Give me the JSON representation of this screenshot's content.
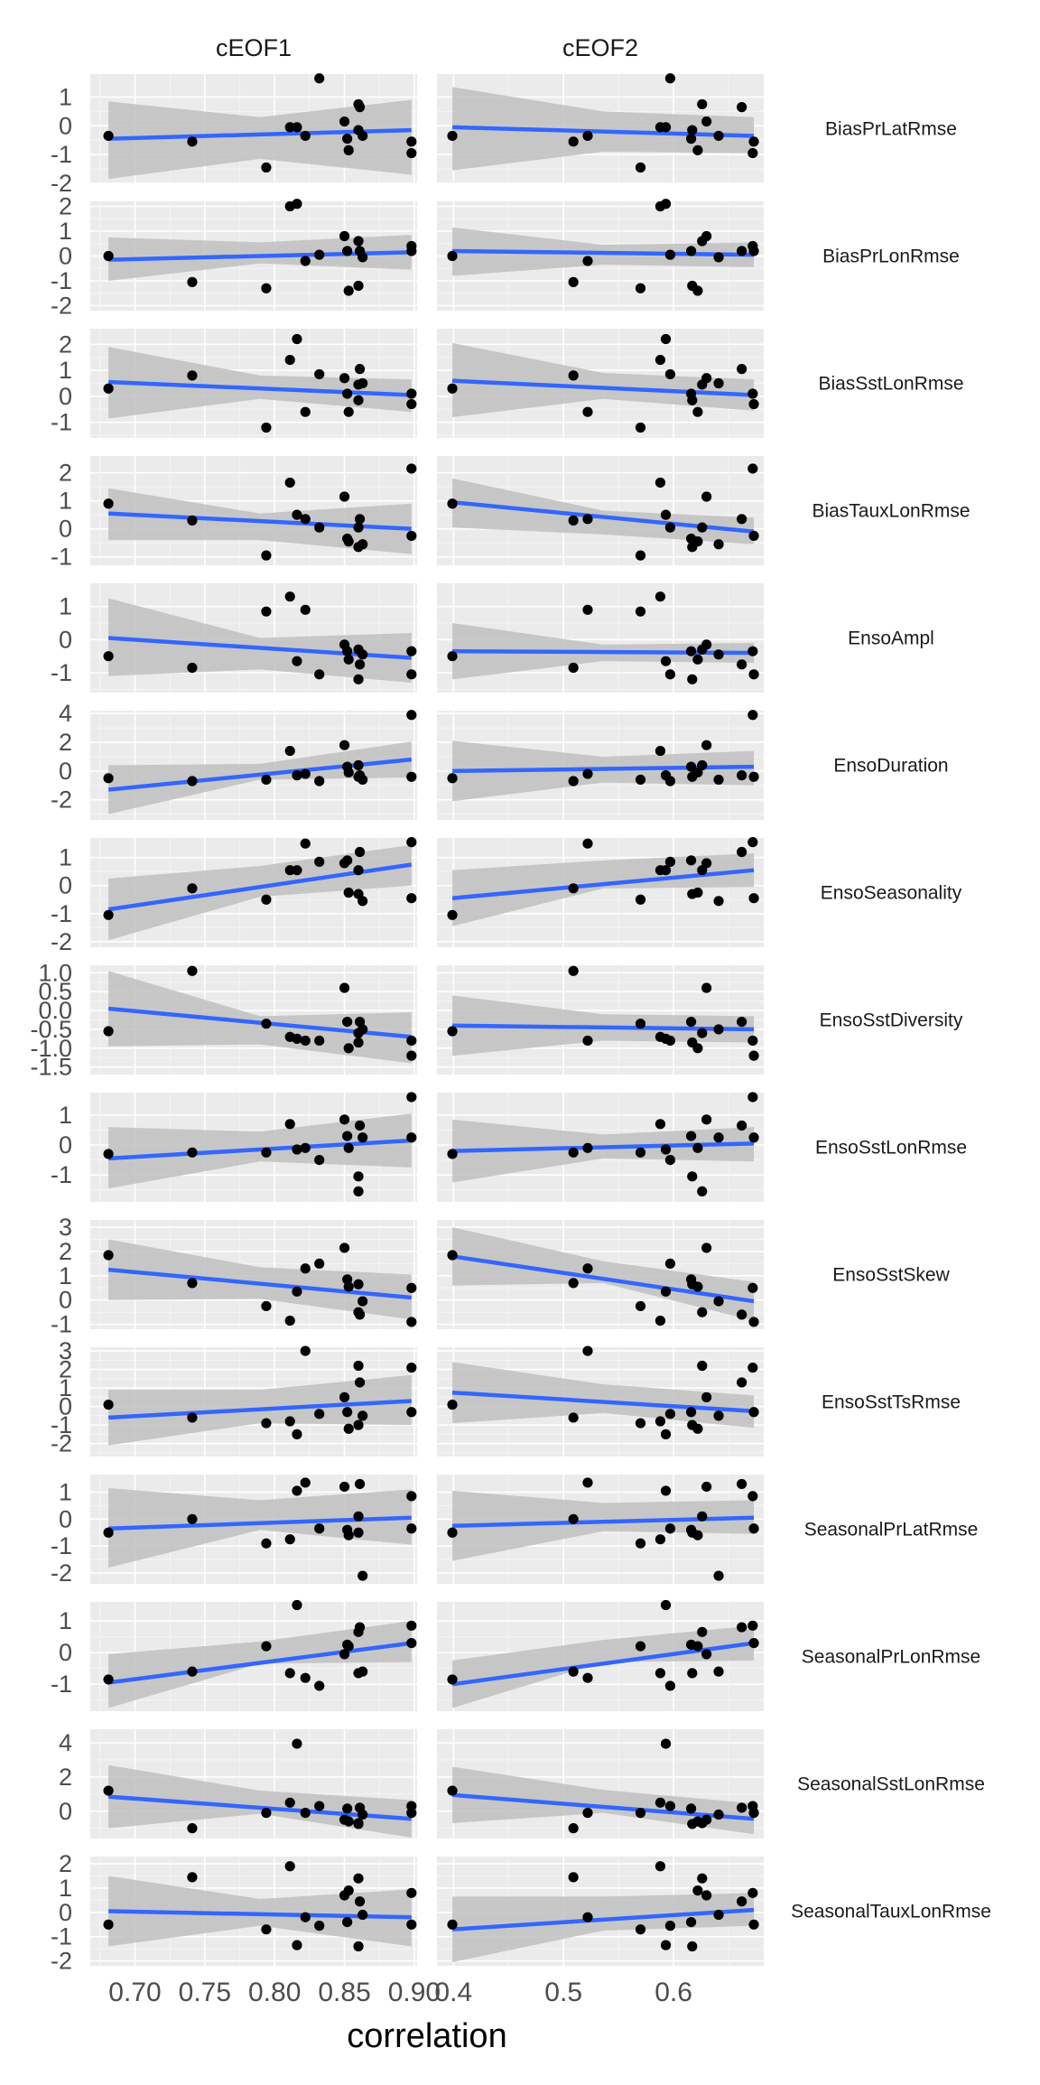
{
  "chart_data": {
    "type": "scatter",
    "xlabel": "correlation",
    "ylabel": "",
    "columns": [
      {
        "name": "cEOF1",
        "xlim": [
          0.668,
          0.902
        ],
        "xticks": [
          "0.70",
          "0.75",
          "0.80",
          "0.85",
          "0.90"
        ]
      },
      {
        "name": "cEOF2",
        "xlim": [
          0.385,
          0.682
        ],
        "xticks": [
          "0.4",
          "0.5",
          "0.6"
        ]
      }
    ],
    "panels": [
      {
        "metric": "BiasPrLatRmse",
        "ylim": [
          -2.0,
          1.8
        ],
        "yticks": [
          "1",
          "0",
          "-1",
          "-2"
        ],
        "y": [
          -0.35,
          -0.55,
          -1.45,
          -0.05,
          -0.05,
          -0.35,
          1.65,
          0.15,
          -0.45,
          -0.85,
          -0.15,
          0.75,
          0.65,
          -0.35,
          -0.95,
          -0.55
        ],
        "fit": [
          [
            -0.45,
            -0.15
          ],
          [
            -0.05,
            -0.35
          ]
        ],
        "band": [
          [
            [
              -1.85,
              0.85
            ],
            [
              -1.15,
              0.3
            ],
            [
              -1.7,
              0.9
            ]
          ],
          [
            [
              -1.55,
              1.35
            ],
            [
              -0.9,
              0.5
            ],
            [
              -0.95,
              0.3
            ]
          ]
        ]
      },
      {
        "metric": "BiasPrLonRmse",
        "ylim": [
          -2.2,
          2.2
        ],
        "yticks": [
          "2",
          "1",
          "0",
          "-1",
          "-2"
        ],
        "y": [
          0.0,
          -1.05,
          -1.3,
          2.0,
          2.1,
          -0.2,
          0.05,
          0.8,
          0.2,
          -1.4,
          -1.2,
          0.6,
          0.2,
          -0.05,
          0.4,
          0.2
        ],
        "fit": [
          [
            -0.15,
            0.15
          ],
          [
            0.2,
            0.05
          ]
        ],
        "band": [
          [
            [
              -1.0,
              0.75
            ],
            [
              -0.3,
              0.55
            ],
            [
              -0.55,
              0.85
            ]
          ],
          [
            [
              -0.8,
              1.15
            ],
            [
              -0.35,
              0.45
            ],
            [
              -0.45,
              0.55
            ]
          ]
        ]
      },
      {
        "metric": "BiasSstLonRmse",
        "ylim": [
          -1.6,
          2.6
        ],
        "yticks": [
          "2",
          "1",
          "0",
          "-1"
        ],
        "y": [
          0.3,
          0.8,
          -1.2,
          1.4,
          2.2,
          -0.6,
          0.85,
          0.7,
          0.1,
          -0.6,
          -0.15,
          0.45,
          1.05,
          0.5,
          0.1,
          -0.3
        ],
        "fit": [
          [
            0.55,
            0.05
          ],
          [
            0.6,
            0.05
          ]
        ],
        "band": [
          [
            [
              -0.85,
              1.9
            ],
            [
              -0.1,
              0.8
            ],
            [
              -0.6,
              0.65
            ]
          ],
          [
            [
              -0.8,
              2.05
            ],
            [
              -0.1,
              0.9
            ],
            [
              -0.55,
              0.65
            ]
          ]
        ]
      },
      {
        "metric": "BiasTauxLonRmse",
        "ylim": [
          -1.3,
          2.6
        ],
        "yticks": [
          "2",
          "1",
          "0",
          "-1"
        ],
        "y": [
          0.9,
          0.3,
          -0.95,
          1.65,
          0.5,
          0.35,
          0.05,
          1.15,
          -0.35,
          -0.45,
          -0.65,
          0.05,
          0.35,
          -0.55,
          2.15,
          -0.25
        ],
        "fit": [
          [
            0.55,
            0.0
          ],
          [
            0.95,
            -0.1
          ]
        ],
        "band": [
          [
            [
              -0.4,
              1.45
            ],
            [
              -0.4,
              0.55
            ],
            [
              -0.9,
              0.9
            ]
          ],
          [
            [
              0.05,
              1.8
            ],
            [
              -0.2,
              0.65
            ],
            [
              -0.55,
              0.4
            ]
          ]
        ]
      },
      {
        "metric": "EnsoAmpl",
        "ylim": [
          -1.6,
          1.7
        ],
        "yticks": [
          "1",
          "0",
          "-1"
        ],
        "y": [
          -0.5,
          -0.85,
          0.85,
          1.3,
          -0.65,
          0.9,
          -1.05,
          -0.15,
          -0.35,
          -0.6,
          -1.2,
          -0.3,
          -0.75,
          -0.45,
          -0.35,
          -1.05
        ],
        "fit": [
          [
            0.05,
            -0.55
          ],
          [
            -0.35,
            -0.4
          ]
        ],
        "band": [
          [
            [
              -1.1,
              1.25
            ],
            [
              -0.9,
              0.05
            ],
            [
              -1.3,
              0.2
            ]
          ],
          [
            [
              -1.2,
              0.5
            ],
            [
              -0.65,
              -0.15
            ],
            [
              -0.7,
              -0.1
            ]
          ]
        ]
      },
      {
        "metric": "EnsoDuration",
        "ylim": [
          -3.4,
          4.2
        ],
        "yticks": [
          "4",
          "2",
          "0",
          "-2"
        ],
        "y": [
          -0.5,
          -0.7,
          -0.6,
          1.4,
          -0.3,
          -0.2,
          -0.7,
          1.8,
          0.3,
          -0.1,
          -0.4,
          0.4,
          -0.3,
          -0.6,
          3.9,
          -0.4
        ],
        "fit": [
          [
            -1.3,
            0.8
          ],
          [
            0.0,
            0.3
          ]
        ],
        "band": [
          [
            [
              -3.0,
              0.4
            ],
            [
              -0.6,
              0.5
            ],
            [
              -0.45,
              2.05
            ]
          ],
          [
            [
              -2.1,
              2.1
            ],
            [
              -0.8,
              1.0
            ],
            [
              -1.0,
              1.4
            ]
          ]
        ]
      },
      {
        "metric": "EnsoSeasonality",
        "ylim": [
          -2.2,
          1.7
        ],
        "yticks": [
          "1",
          "0",
          "-1",
          "-2"
        ],
        "y": [
          -1.05,
          -0.1,
          -0.5,
          0.55,
          0.55,
          1.5,
          0.85,
          0.8,
          0.9,
          -0.25,
          -0.3,
          0.55,
          1.2,
          -0.55,
          1.55,
          -0.45
        ],
        "fit": [
          [
            -0.85,
            0.75
          ],
          [
            -0.45,
            0.55
          ]
        ],
        "band": [
          [
            [
              -1.95,
              0.25
            ],
            [
              -0.4,
              0.7
            ],
            [
              0.0,
              1.45
            ]
          ],
          [
            [
              -1.45,
              0.55
            ],
            [
              -0.1,
              0.9
            ],
            [
              -0.05,
              1.15
            ]
          ]
        ]
      },
      {
        "metric": "EnsoSstDiversity",
        "ylim": [
          -1.7,
          1.2
        ],
        "yticks": [
          "1.0",
          "0.5",
          "0.0",
          "-0.5",
          "-1.0",
          "-1.5"
        ],
        "y": [
          -0.55,
          1.05,
          -0.35,
          -0.7,
          -0.75,
          -0.8,
          -0.8,
          0.6,
          -0.3,
          -1.0,
          -0.85,
          -0.6,
          -0.3,
          -0.5,
          -0.8,
          -1.2
        ],
        "fit": [
          [
            0.05,
            -0.7
          ],
          [
            -0.4,
            -0.5
          ]
        ],
        "band": [
          [
            [
              -0.95,
              1.05
            ],
            [
              -0.9,
              -0.15
            ],
            [
              -1.4,
              -0.05
            ]
          ],
          [
            [
              -1.2,
              0.4
            ],
            [
              -0.8,
              -0.1
            ],
            [
              -0.85,
              -0.15
            ]
          ]
        ]
      },
      {
        "metric": "EnsoSstLonRmse",
        "ylim": [
          -1.9,
          1.75
        ],
        "yticks": [
          "1",
          "0",
          "-1"
        ],
        "y": [
          -0.3,
          -0.25,
          -0.25,
          0.7,
          -0.15,
          -0.1,
          -0.5,
          0.85,
          0.3,
          -0.1,
          -1.05,
          -1.55,
          0.65,
          0.25,
          1.6,
          0.25
        ],
        "fit": [
          [
            -0.45,
            0.15
          ],
          [
            -0.2,
            0.05
          ]
        ],
        "band": [
          [
            [
              -1.45,
              0.6
            ],
            [
              -0.55,
              0.45
            ],
            [
              -0.75,
              1.05
            ]
          ],
          [
            [
              -1.25,
              0.85
            ],
            [
              -0.45,
              0.35
            ],
            [
              -0.55,
              0.6
            ]
          ]
        ]
      },
      {
        "metric": "EnsoSstSkew",
        "ylim": [
          -1.2,
          3.3
        ],
        "yticks": [
          "3",
          "2",
          "1",
          "0",
          "-1"
        ],
        "y": [
          1.85,
          0.7,
          -0.25,
          -0.85,
          0.35,
          1.3,
          1.5,
          2.15,
          0.85,
          0.55,
          0.65,
          -0.5,
          -0.6,
          -0.05,
          0.5,
          -0.9
        ],
        "fit": [
          [
            1.25,
            0.1
          ],
          [
            1.8,
            -0.05
          ]
        ],
        "band": [
          [
            [
              0.0,
              2.5
            ],
            [
              0.05,
              1.35
            ],
            [
              -0.8,
              1.05
            ]
          ],
          [
            [
              0.6,
              3.0
            ],
            [
              0.7,
              1.6
            ],
            [
              -0.85,
              0.75
            ]
          ]
        ]
      },
      {
        "metric": "EnsoSstTsRmse",
        "ylim": [
          -2.7,
          3.2
        ],
        "yticks": [
          "3",
          "2",
          "1",
          "0",
          "-1",
          "-2"
        ],
        "y": [
          0.1,
          -0.6,
          -0.9,
          -0.8,
          -1.5,
          3.0,
          -0.4,
          0.5,
          -0.3,
          -1.2,
          -1.0,
          2.2,
          1.3,
          -0.5,
          2.1,
          -0.3
        ],
        "fit": [
          [
            -0.6,
            0.3
          ],
          [
            0.75,
            -0.25
          ]
        ],
        "band": [
          [
            [
              -2.1,
              0.9
            ],
            [
              -0.9,
              0.9
            ],
            [
              -1.0,
              1.7
            ]
          ],
          [
            [
              -0.9,
              2.4
            ],
            [
              -0.35,
              1.2
            ],
            [
              -1.15,
              0.6
            ]
          ]
        ]
      },
      {
        "metric": "SeasonalPrLatRmse",
        "ylim": [
          -2.4,
          1.65
        ],
        "yticks": [
          "1",
          "0",
          "-1",
          "-2"
        ],
        "y": [
          -0.5,
          0.0,
          -0.9,
          -0.75,
          1.05,
          1.35,
          -0.35,
          1.2,
          -0.4,
          -0.6,
          -0.5,
          0.1,
          1.3,
          -2.1,
          0.85,
          -0.35
        ],
        "fit": [
          [
            -0.35,
            0.05
          ],
          [
            -0.25,
            0.05
          ]
        ],
        "band": [
          [
            [
              -1.8,
              1.15
            ],
            [
              -0.4,
              0.7
            ],
            [
              -0.95,
              1.1
            ]
          ],
          [
            [
              -1.55,
              1.05
            ],
            [
              -0.45,
              0.6
            ],
            [
              -0.55,
              0.7
            ]
          ]
        ]
      },
      {
        "metric": "SeasonalPrLonRmse",
        "ylim": [
          -1.85,
          1.6
        ],
        "yticks": [
          "1",
          "0",
          "-1"
        ],
        "y": [
          -0.85,
          -0.6,
          0.2,
          -0.65,
          1.5,
          -0.8,
          -1.05,
          -0.05,
          0.25,
          0.2,
          -0.65,
          0.65,
          0.8,
          -0.6,
          0.85,
          0.3
        ],
        "fit": [
          [
            -0.95,
            0.3
          ],
          [
            -1.0,
            0.3
          ]
        ],
        "band": [
          [
            [
              -1.75,
              -0.05
            ],
            [
              -0.35,
              0.35
            ],
            [
              -0.3,
              1.0
            ]
          ],
          [
            [
              -1.75,
              -0.25
            ],
            [
              -0.3,
              0.4
            ],
            [
              -0.25,
              0.85
            ]
          ]
        ]
      },
      {
        "metric": "SeasonalSstLonRmse",
        "ylim": [
          -1.6,
          4.8
        ],
        "yticks": [
          "4",
          "2",
          "0"
        ],
        "y": [
          1.2,
          -1.0,
          -0.1,
          0.5,
          3.95,
          -0.1,
          0.3,
          -0.5,
          0.15,
          -0.6,
          -0.75,
          -0.7,
          0.2,
          -0.2,
          0.3,
          -0.1
        ],
        "fit": [
          [
            0.85,
            -0.45
          ],
          [
            0.95,
            -0.45
          ]
        ],
        "band": [
          [
            [
              -1.0,
              2.7
            ],
            [
              -0.15,
              1.2
            ],
            [
              -1.55,
              0.65
            ]
          ],
          [
            [
              -0.7,
              2.6
            ],
            [
              -0.1,
              1.25
            ],
            [
              -1.35,
              0.45
            ]
          ]
        ]
      },
      {
        "metric": "SeasonalTauxLonRmse",
        "ylim": [
          -2.2,
          2.3
        ],
        "yticks": [
          "2",
          "1",
          "0",
          "-1",
          "-2"
        ],
        "y": [
          -0.5,
          1.45,
          -0.7,
          1.9,
          -1.35,
          -0.2,
          -0.55,
          0.7,
          -0.4,
          0.9,
          -1.4,
          1.4,
          0.45,
          -0.1,
          0.8,
          -0.5
        ],
        "fit": [
          [
            0.05,
            -0.2
          ],
          [
            -0.7,
            0.1
          ]
        ],
        "band": [
          [
            [
              -1.4,
              1.5
            ],
            [
              -0.55,
              0.55
            ],
            [
              -1.4,
              0.95
            ]
          ],
          [
            [
              -2.05,
              0.65
            ],
            [
              -0.75,
              0.65
            ],
            [
              -0.55,
              0.8
            ]
          ]
        ]
      }
    ],
    "x_cEOF1": [
      0.681,
      0.741,
      0.794,
      0.811,
      0.816,
      0.822,
      0.832,
      0.85,
      0.852,
      0.853,
      0.86,
      0.86,
      0.861,
      0.863,
      0.898,
      0.898
    ],
    "x_cEOF2": [
      0.399,
      0.509,
      0.57,
      0.588,
      0.593,
      0.522,
      0.597,
      0.63,
      0.616,
      0.622,
      0.617,
      0.626,
      0.662,
      0.641,
      0.672,
      0.673
    ],
    "colors": {
      "panel_bg": "#ebebeb",
      "grid_major": "#ffffff",
      "grid_minor": "#f5f5f5",
      "band": "#bfbfbf",
      "fit": "#3366ff",
      "point": "#000000"
    }
  }
}
